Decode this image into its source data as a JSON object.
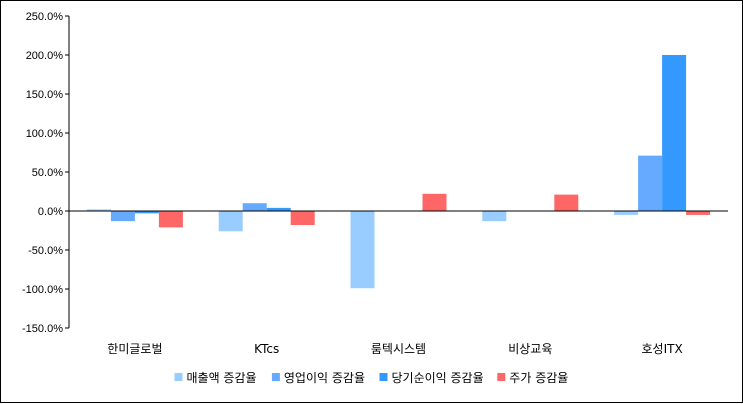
{
  "chart_data": {
    "type": "bar",
    "categories": [
      "한미글로벌",
      "KTcs",
      "룸텍시스템",
      "비상교육",
      "호성ITX"
    ],
    "series": [
      {
        "name": "매출액 증감율",
        "color": "#99ccff",
        "values": [
          2,
          -26,
          -99,
          -13,
          -5
        ]
      },
      {
        "name": "영업이익 증감율",
        "color": "#66aaff",
        "values": [
          -13,
          10,
          0,
          0,
          71
        ]
      },
      {
        "name": "당기순이익 증감율",
        "color": "#3399ff",
        "values": [
          -3,
          4,
          0,
          0,
          200
        ]
      },
      {
        "name": "주가 증감율",
        "color": "#ff6666",
        "values": [
          -21,
          -18,
          22,
          21,
          -5
        ]
      }
    ],
    "ylim": [
      -150,
      250
    ],
    "yticks": [
      "250.0%",
      "200.0%",
      "150.0%",
      "100.0%",
      "50.0%",
      "0.0%",
      "-50.0%",
      "-100.0%",
      "-150.0%"
    ],
    "ytick_values": [
      250,
      200,
      150,
      100,
      50,
      0,
      -50,
      -100,
      -150
    ],
    "grid": false,
    "legend": "bottom",
    "title": "",
    "xlabel": "",
    "ylabel": ""
  }
}
